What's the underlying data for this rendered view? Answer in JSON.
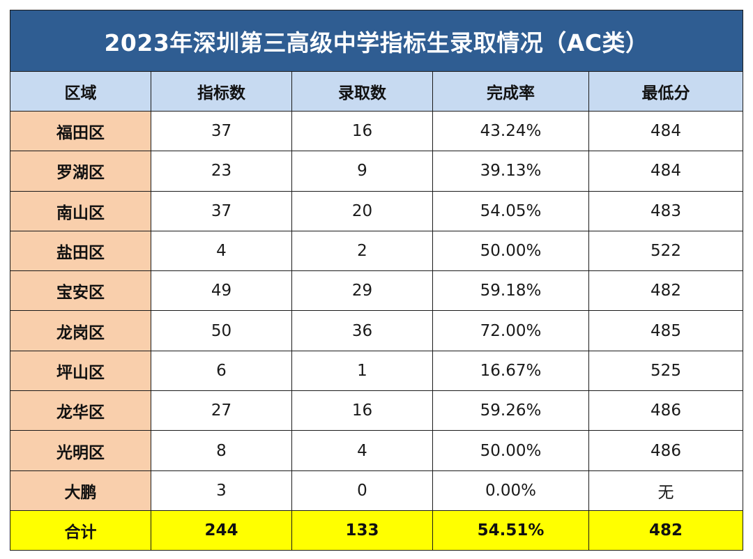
{
  "table": {
    "title": "2023年深圳第三高级中学指标生录取情况（AC类）",
    "headers": [
      "区域",
      "指标数",
      "录取数",
      "完成率",
      "最低分"
    ],
    "rows": [
      {
        "region": "福田区",
        "quota": "37",
        "admitted": "16",
        "rate": "43.24%",
        "min_score": "484"
      },
      {
        "region": "罗湖区",
        "quota": "23",
        "admitted": "9",
        "rate": "39.13%",
        "min_score": "484"
      },
      {
        "region": "南山区",
        "quota": "37",
        "admitted": "20",
        "rate": "54.05%",
        "min_score": "483"
      },
      {
        "region": "盐田区",
        "quota": "4",
        "admitted": "2",
        "rate": "50.00%",
        "min_score": "522"
      },
      {
        "region": "宝安区",
        "quota": "49",
        "admitted": "29",
        "rate": "59.18%",
        "min_score": "482"
      },
      {
        "region": "龙岗区",
        "quota": "50",
        "admitted": "36",
        "rate": "72.00%",
        "min_score": "485"
      },
      {
        "region": "坪山区",
        "quota": "6",
        "admitted": "1",
        "rate": "16.67%",
        "min_score": "525"
      },
      {
        "region": "龙华区",
        "quota": "27",
        "admitted": "16",
        "rate": "59.26%",
        "min_score": "486"
      },
      {
        "region": "光明区",
        "quota": "8",
        "admitted": "4",
        "rate": "50.00%",
        "min_score": "486"
      },
      {
        "region": "大鹏",
        "quota": "3",
        "admitted": "0",
        "rate": "0.00%",
        "min_score": "无"
      }
    ],
    "total": {
      "region": "合计",
      "quota": "244",
      "admitted": "133",
      "rate": "54.51%",
      "min_score": "482"
    }
  },
  "colors": {
    "title_bg": "#2f5d92",
    "header_bg": "#c7daf1",
    "region_bg": "#f9cfac",
    "total_bg": "#ffff00"
  }
}
